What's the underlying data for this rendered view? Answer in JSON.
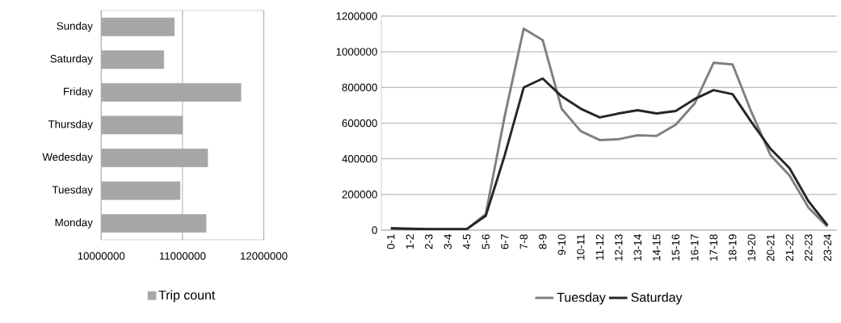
{
  "chart_data": [
    {
      "type": "bar",
      "orientation": "horizontal",
      "categories": [
        "Sunday",
        "Saturday",
        "Friday",
        "Thursday",
        "Wedesday",
        "Tuesday",
        "Monday"
      ],
      "series": [
        {
          "name": "Trip count",
          "color": "#a6a6a6",
          "values": [
            10900000,
            10770000,
            11720000,
            11000000,
            11310000,
            10970000,
            11290000
          ]
        }
      ],
      "xlim": [
        10000000,
        12000000
      ],
      "xticks": [
        10000000,
        11000000,
        12000000
      ],
      "grid": "x",
      "legend": "bottom"
    },
    {
      "type": "line",
      "categories": [
        "0-1",
        "1-2",
        "2-3",
        "3-4",
        "4-5",
        "5-6",
        "6-7",
        "7-8",
        "8-9",
        "9-10",
        "10-11",
        "11-12",
        "12-13",
        "13-14",
        "14-15",
        "15-16",
        "16-17",
        "17-18",
        "18-19",
        "19-20",
        "20-21",
        "21-22",
        "22-23",
        "23-24"
      ],
      "series": [
        {
          "name": "Tuesday",
          "color": "#808080",
          "values": [
            10000,
            5000,
            5000,
            5000,
            5000,
            90000,
            640000,
            1130000,
            1065000,
            680000,
            555000,
            505000,
            510000,
            532000,
            528000,
            591000,
            710000,
            938000,
            929000,
            660000,
            420000,
            307000,
            126000,
            20000
          ]
        },
        {
          "name": "Saturday",
          "color": "#262626",
          "values": [
            10000,
            8000,
            6000,
            6000,
            6000,
            80000,
            420000,
            800000,
            850000,
            750000,
            681000,
            632000,
            654000,
            672000,
            654000,
            668000,
            735000,
            785000,
            762000,
            605000,
            456000,
            347000,
            162000,
            27000
          ]
        }
      ],
      "ylim": [
        0,
        1200000
      ],
      "yticks": [
        0,
        200000,
        400000,
        600000,
        800000,
        1000000,
        1200000
      ],
      "grid": "y",
      "legend": "bottom"
    }
  ]
}
